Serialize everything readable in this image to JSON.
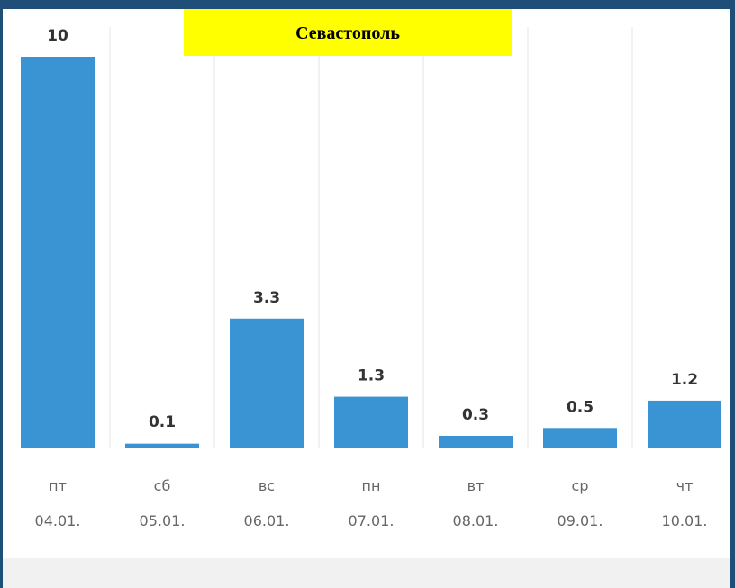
{
  "chart_data": {
    "type": "bar",
    "title": "Севастополь",
    "categories": [
      "пт",
      "сб",
      "вс",
      "пн",
      "вт",
      "ср",
      "чт"
    ],
    "dates": [
      "04.01.",
      "05.01.",
      "06.01.",
      "07.01.",
      "08.01.",
      "09.01.",
      "10.01."
    ],
    "values": [
      10,
      0.1,
      3.3,
      1.3,
      0.3,
      0.5,
      1.2
    ],
    "color": "#3a93d2"
  }
}
